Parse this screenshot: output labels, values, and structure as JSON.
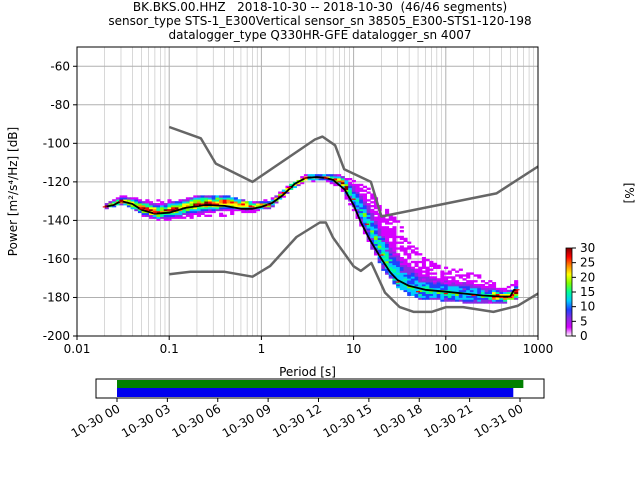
{
  "title": {
    "line1": "BK.BKS.00.HHZ   2018-10-30 -- 2018-10-30  (46/46 segments)",
    "line2": "sensor_type STS-1_E300Vertical sensor_sn 38505_E300-STS1-120-198",
    "line3": "datalogger_type Q330HR-GFE datalogger_sn 4007"
  },
  "colors": {
    "nlnm_nhnm": "#666666",
    "mean": "#000000",
    "mode_red": "#e8000b",
    "coverage_green": "#008000",
    "coverage_blue": "#0000ee",
    "grid": "#b0b0b0"
  },
  "chart_data": [
    {
      "type": "heatmap",
      "xlabel": "Period [s]",
      "ylabel": "Power [m²/s⁴/Hz] [dB]",
      "x_scale": "log",
      "xlim": [
        0.01,
        1000
      ],
      "ylim": [
        -200,
        -50
      ],
      "xticks": [
        0.01,
        0.1,
        1,
        10,
        100,
        1000
      ],
      "xtick_labels": [
        "0.01",
        "0.1",
        "1",
        "10",
        "100",
        "1000"
      ],
      "yticks": [
        -200,
        -180,
        -160,
        -140,
        -120,
        -100,
        -80,
        -60
      ],
      "grid": true,
      "colorbar": {
        "label": "[%]",
        "range": [
          0,
          30
        ],
        "ticks": [
          0,
          5,
          10,
          15,
          20,
          25,
          30
        ],
        "colormap": [
          "#ffffff",
          "#d600ff",
          "#8a2be2",
          "#1e40ff",
          "#00ccff",
          "#00ff99",
          "#7fff00",
          "#ffff00",
          "#ff8800",
          "#ff0000",
          "#800000"
        ]
      },
      "reference_curves": {
        "nhnm": [
          [
            0.1,
            -91.5
          ],
          [
            0.22,
            -97.4
          ],
          [
            0.32,
            -110.5
          ],
          [
            0.8,
            -120
          ],
          [
            3.8,
            -98
          ],
          [
            4.6,
            -96.5
          ],
          [
            6.3,
            -101
          ],
          [
            7.9,
            -113.5
          ],
          [
            15.4,
            -120
          ],
          [
            20,
            -138
          ],
          [
            354,
            -126
          ],
          [
            1000,
            -112
          ]
        ],
        "nlnm": [
          [
            0.1,
            -168
          ],
          [
            0.17,
            -166.7
          ],
          [
            0.4,
            -166.7
          ],
          [
            0.8,
            -169.2
          ],
          [
            1.24,
            -163.7
          ],
          [
            2.4,
            -148.6
          ],
          [
            4.3,
            -141.1
          ],
          [
            5,
            -141.1
          ],
          [
            6,
            -149
          ],
          [
            10,
            -163.8
          ],
          [
            12,
            -166.2
          ],
          [
            15.6,
            -162.1
          ],
          [
            21.9,
            -177.5
          ],
          [
            31.6,
            -185
          ],
          [
            45,
            -187.5
          ],
          [
            70,
            -187.5
          ],
          [
            101,
            -185
          ],
          [
            154,
            -185
          ],
          [
            328,
            -187.5
          ],
          [
            600,
            -184.4
          ],
          [
            1000,
            -178
          ]
        ]
      },
      "mean_curve": [
        [
          0.02,
          -133
        ],
        [
          0.025,
          -132
        ],
        [
          0.03,
          -130
        ],
        [
          0.04,
          -131.5
        ],
        [
          0.05,
          -134.5
        ],
        [
          0.07,
          -136.5
        ],
        [
          0.1,
          -136
        ],
        [
          0.15,
          -133.5
        ],
        [
          0.25,
          -132
        ],
        [
          0.4,
          -132.5
        ],
        [
          0.6,
          -134
        ],
        [
          0.8,
          -134
        ],
        [
          1.0,
          -133
        ],
        [
          1.3,
          -131
        ],
        [
          1.7,
          -127
        ],
        [
          2.3,
          -121
        ],
        [
          3,
          -118
        ],
        [
          4,
          -117.5
        ],
        [
          5,
          -118
        ],
        [
          6,
          -119
        ],
        [
          8,
          -124
        ],
        [
          10,
          -132
        ],
        [
          12,
          -141
        ],
        [
          15,
          -150
        ],
        [
          20,
          -160
        ],
        [
          25,
          -167
        ],
        [
          30,
          -171
        ],
        [
          40,
          -174
        ],
        [
          60,
          -176
        ],
        [
          100,
          -177
        ],
        [
          160,
          -178
        ],
        [
          250,
          -179
        ],
        [
          400,
          -179.5
        ],
        [
          500,
          -179.5
        ],
        [
          550,
          -176
        ],
        [
          600,
          -176
        ]
      ],
      "upper_envelope": [
        [
          0.02,
          -131
        ],
        [
          0.03,
          -127.5
        ],
        [
          0.05,
          -129
        ],
        [
          0.1,
          -130
        ],
        [
          0.2,
          -127.5
        ],
        [
          0.4,
          -127.5
        ],
        [
          0.8,
          -131
        ],
        [
          1.2,
          -129
        ],
        [
          2,
          -121
        ],
        [
          3,
          -116.5
        ],
        [
          5,
          -116
        ],
        [
          7,
          -117
        ],
        [
          10,
          -120
        ],
        [
          14,
          -124
        ],
        [
          20,
          -133
        ],
        [
          28,
          -140
        ],
        [
          38,
          -148
        ],
        [
          50,
          -157
        ],
        [
          70,
          -162
        ],
        [
          100,
          -165
        ],
        [
          150,
          -166
        ],
        [
          200,
          -168
        ],
        [
          300,
          -172
        ],
        [
          400,
          -176
        ],
        [
          500,
          -172
        ],
        [
          600,
          -172
        ]
      ],
      "lower_envelope": [
        [
          0.02,
          -134
        ],
        [
          0.03,
          -133
        ],
        [
          0.05,
          -138
        ],
        [
          0.07,
          -140
        ],
        [
          0.1,
          -140
        ],
        [
          0.2,
          -139
        ],
        [
          0.4,
          -138
        ],
        [
          0.8,
          -136
        ],
        [
          1.2,
          -134
        ],
        [
          2,
          -125
        ],
        [
          3,
          -120
        ],
        [
          5,
          -120
        ],
        [
          7,
          -124
        ],
        [
          10,
          -138
        ],
        [
          14,
          -152
        ],
        [
          20,
          -166
        ],
        [
          28,
          -175
        ],
        [
          38,
          -179
        ],
        [
          50,
          -181
        ],
        [
          80,
          -182
        ],
        [
          150,
          -183
        ],
        [
          250,
          -184
        ],
        [
          400,
          -183.5
        ],
        [
          500,
          -181
        ],
        [
          600,
          -181
        ]
      ],
      "mode_curve": [
        [
          0.02,
          -133
        ],
        [
          0.03,
          -130
        ],
        [
          0.05,
          -134
        ],
        [
          0.07,
          -136
        ],
        [
          0.1,
          -135
        ],
        [
          0.2,
          -132
        ],
        [
          0.4,
          -131
        ],
        [
          0.8,
          -133
        ],
        [
          1.2,
          -132
        ],
        [
          2,
          -123
        ],
        [
          3,
          -118
        ],
        [
          5,
          -118
        ],
        [
          7,
          -120
        ],
        [
          10,
          -129
        ],
        [
          14,
          -142
        ],
        [
          20,
          -158
        ],
        [
          30,
          -172
        ],
        [
          50,
          -177
        ],
        [
          100,
          -178
        ],
        [
          200,
          -179
        ],
        [
          400,
          -180
        ],
        [
          500,
          -180
        ],
        [
          600,
          -176
        ]
      ]
    },
    {
      "type": "bar",
      "description": "data coverage",
      "xtick_labels": [
        "10-30 00",
        "10-30 03",
        "10-30 06",
        "10-30 09",
        "10-30 12",
        "10-30 15",
        "10-30 18",
        "10-30 21",
        "10-31 00"
      ],
      "series": [
        {
          "color": "green",
          "start_hour": 0,
          "end_hour": 24.2
        },
        {
          "color": "blue",
          "start_hour": 0,
          "end_hour": 23.6
        }
      ]
    }
  ]
}
